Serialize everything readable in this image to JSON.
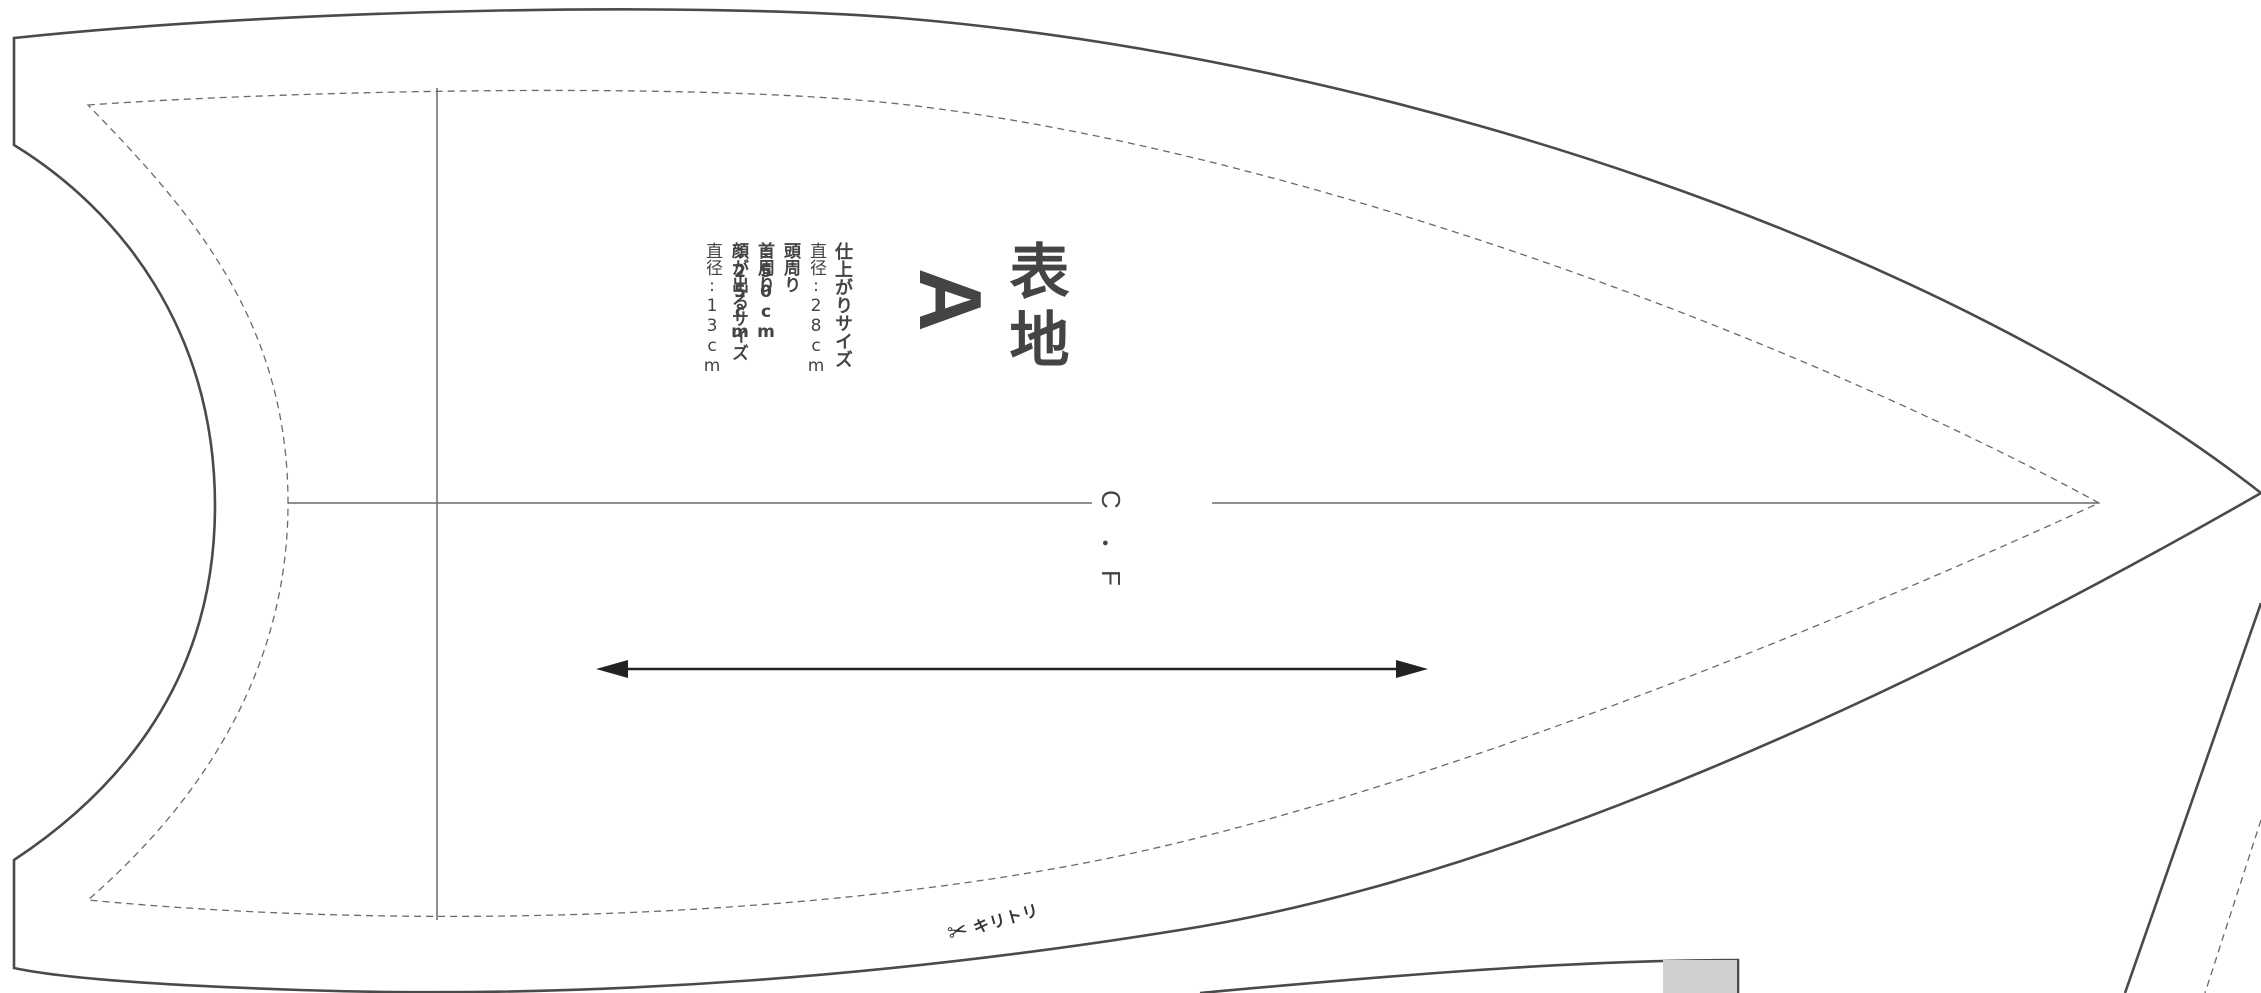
{
  "pattern_piece": {
    "fabric_label": "表地",
    "piece_letter": "A",
    "finished_size": {
      "heading": "仕上がりサイズ",
      "lines": [
        "直径:28cm",
        "頭周り :50cm",
        "首周り :25cm",
        "顔が出るサイズ",
        "直径:13cm"
      ]
    },
    "center_front_label": [
      "C",
      "・",
      "F"
    ],
    "cut_mark": {
      "text": "キリトリ",
      "icon": "scissors-icon"
    }
  },
  "colors": {
    "line": "#4a4a4a",
    "text": "#444444",
    "grain_arrow": "#222222",
    "adjacent_piece_fill": "#d0d0d0"
  }
}
